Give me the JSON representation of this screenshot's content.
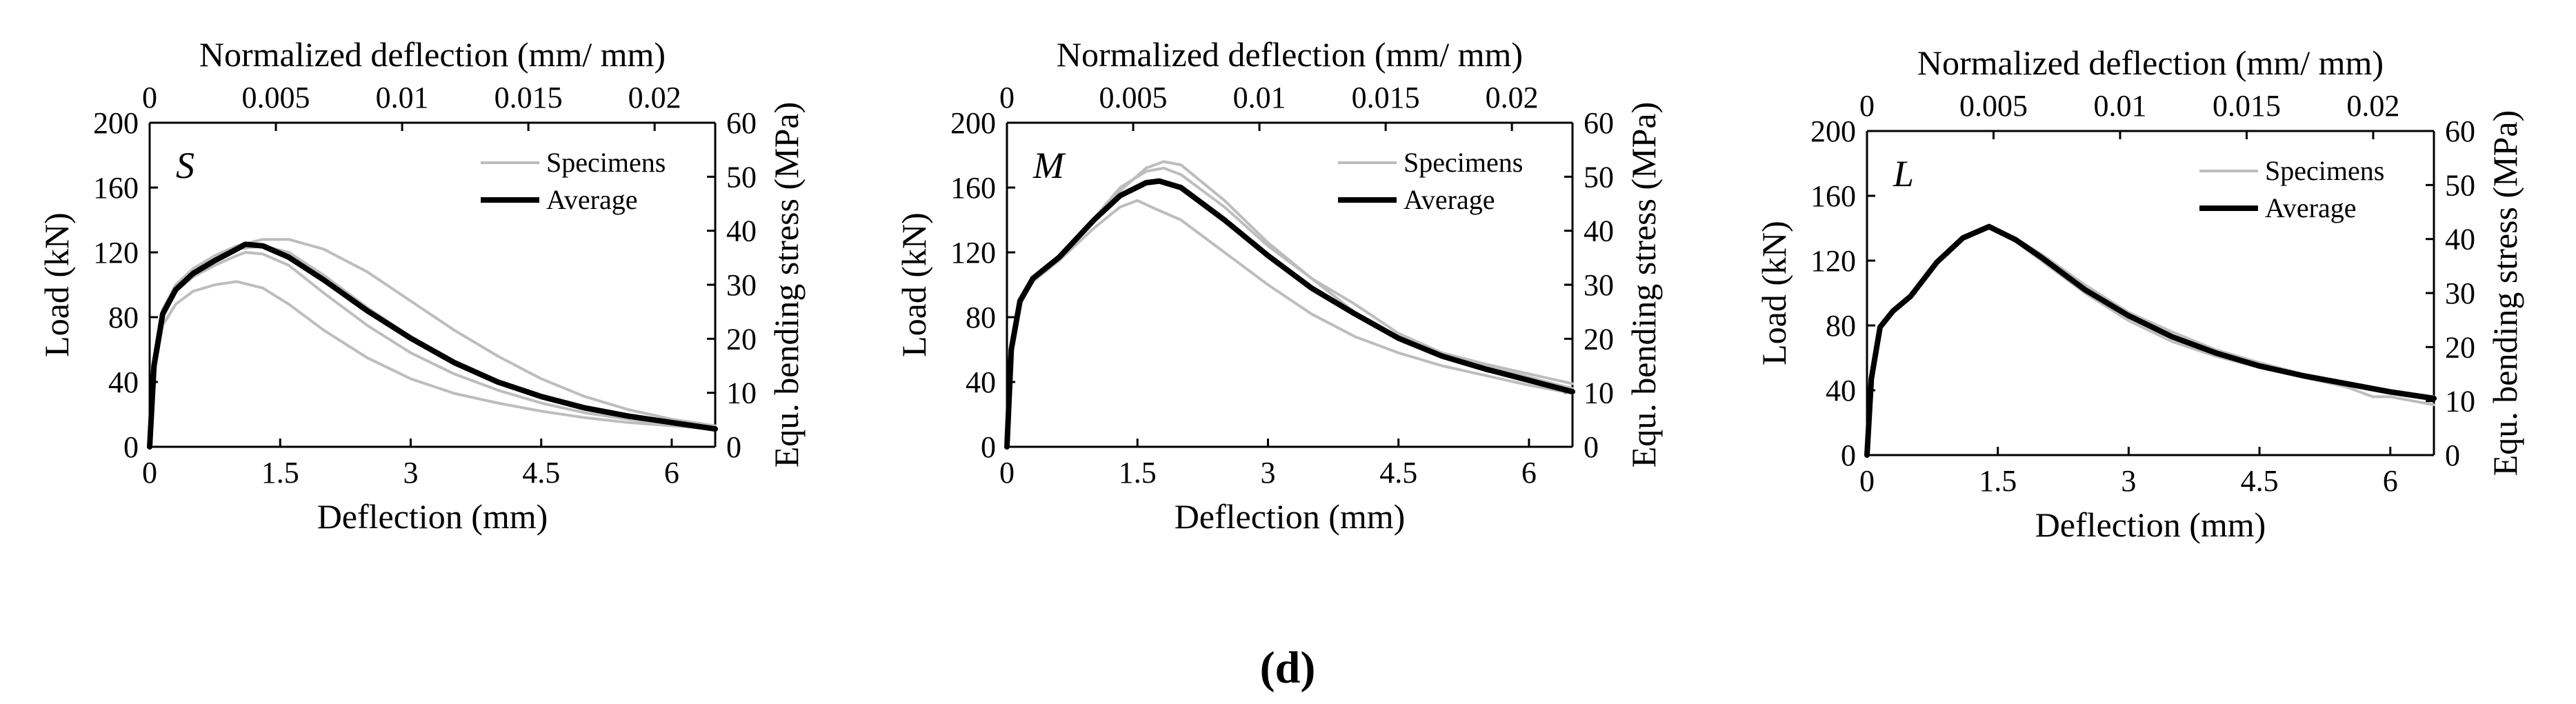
{
  "figure": {
    "caption_letter": "d"
  },
  "chart_data": [
    {
      "type": "line",
      "panel_label": "S",
      "xlabel": "Deflection (mm)",
      "ylabel": "Load (kN)",
      "x2label": "Normalized deflection (mm/ mm)",
      "y2label": "Equ. bending stress (MPa)",
      "xlim": [
        0,
        6.5
      ],
      "ylim": [
        0,
        200
      ],
      "x2lim": [
        0,
        0.0224
      ],
      "y2lim": [
        0,
        60
      ],
      "xticks": [
        0,
        1.5,
        3,
        4.5,
        6
      ],
      "yticks": [
        0,
        40,
        80,
        120,
        160,
        200
      ],
      "x2ticks": [
        0,
        0.005,
        0.01,
        0.015,
        0.02
      ],
      "y2ticks": [
        0,
        10,
        20,
        30,
        40,
        50,
        60
      ],
      "xtick_labels": [
        "0",
        "1.5",
        "3",
        "4.5",
        "6"
      ],
      "ytick_labels": [
        "0",
        "40",
        "80",
        "120",
        "160",
        "200"
      ],
      "x2tick_labels": [
        "0",
        "0.005",
        "0.01",
        "0.015",
        "0.02"
      ],
      "y2tick_labels": [
        "0",
        "10",
        "20",
        "30",
        "40",
        "50",
        "60"
      ],
      "legend": {
        "position": "top-right",
        "entries": [
          "Specimens",
          "Average"
        ]
      },
      "series": [
        {
          "name": "Specimens",
          "style": "specimen",
          "x": [
            0,
            0.05,
            0.15,
            0.3,
            0.5,
            0.75,
            1.0,
            1.1,
            1.3,
            1.6,
            2.0,
            2.5,
            3.0,
            3.5,
            4.0,
            4.5,
            5.0,
            5.5,
            6.0,
            6.5
          ],
          "y": [
            0,
            50,
            80,
            96,
            105,
            112,
            118,
            120,
            119,
            112,
            95,
            75,
            58,
            45,
            35,
            27,
            21,
            17,
            14,
            11
          ]
        },
        {
          "name": "Specimens",
          "style": "specimen",
          "x": [
            0,
            0.05,
            0.15,
            0.3,
            0.5,
            0.75,
            1.0,
            1.3,
            1.6,
            2.0,
            2.5,
            3.0,
            3.5,
            4.0,
            4.5,
            5.0,
            5.5,
            6.0,
            6.5
          ],
          "y": [
            0,
            45,
            75,
            88,
            96,
            100,
            102,
            98,
            88,
            72,
            55,
            42,
            33,
            27,
            22,
            18,
            15,
            13,
            11
          ]
        },
        {
          "name": "Specimens",
          "style": "specimen",
          "x": [
            0,
            0.05,
            0.15,
            0.3,
            0.5,
            0.75,
            1.0,
            1.3,
            1.6,
            2.0,
            2.5,
            3.0,
            3.5,
            4.0,
            4.5,
            5.0,
            5.5,
            6.0,
            6.5
          ],
          "y": [
            0,
            55,
            85,
            100,
            110,
            118,
            124,
            128,
            128,
            122,
            108,
            90,
            72,
            56,
            42,
            31,
            23,
            17,
            13
          ]
        },
        {
          "name": "Specimens",
          "style": "specimen",
          "x": [
            0,
            0.05,
            0.15,
            0.3,
            0.5,
            0.75,
            1.0,
            1.3,
            1.6,
            2.0,
            2.5,
            3.0,
            3.5,
            4.0,
            4.5,
            5.0,
            5.5,
            6.0,
            6.5
          ],
          "y": [
            0,
            52,
            82,
            98,
            108,
            116,
            122,
            124,
            120,
            106,
            86,
            68,
            53,
            41,
            32,
            25,
            19,
            15,
            12
          ]
        },
        {
          "name": "Average",
          "style": "average",
          "x": [
            0,
            0.05,
            0.15,
            0.3,
            0.5,
            0.75,
            1.0,
            1.1,
            1.3,
            1.6,
            2.0,
            2.5,
            3.0,
            3.5,
            4.0,
            4.5,
            5.0,
            5.5,
            6.0,
            6.5
          ],
          "y": [
            0,
            50,
            82,
            97,
            107,
            115,
            122,
            125,
            124,
            117,
            103,
            84,
            67,
            52,
            40,
            31,
            24,
            19,
            15,
            11
          ]
        }
      ]
    },
    {
      "type": "line",
      "panel_label": "M",
      "xlabel": "Deflection (mm)",
      "ylabel": "Load (kN)",
      "x2label": "Normalized deflection (mm/ mm)",
      "y2label": "Equ. bending stress (MPa)",
      "xlim": [
        0,
        6.5
      ],
      "ylim": [
        0,
        200
      ],
      "x2lim": [
        0,
        0.0224
      ],
      "y2lim": [
        0,
        60
      ],
      "xticks": [
        0,
        1.5,
        3,
        4.5,
        6
      ],
      "yticks": [
        0,
        40,
        80,
        120,
        160,
        200
      ],
      "x2ticks": [
        0,
        0.005,
        0.01,
        0.015,
        0.02
      ],
      "y2ticks": [
        0,
        10,
        20,
        30,
        40,
        50,
        60
      ],
      "xtick_labels": [
        "0",
        "1.5",
        "3",
        "4.5",
        "6"
      ],
      "ytick_labels": [
        "0",
        "40",
        "80",
        "120",
        "160",
        "200"
      ],
      "x2tick_labels": [
        "0",
        "0.005",
        "0.01",
        "0.015",
        "0.02"
      ],
      "y2tick_labels": [
        "0",
        "10",
        "20",
        "30",
        "40",
        "50",
        "60"
      ],
      "legend": {
        "position": "top-right",
        "entries": [
          "Specimens",
          "Average"
        ]
      },
      "series": [
        {
          "name": "Specimens",
          "style": "specimen",
          "x": [
            0,
            0.05,
            0.15,
            0.3,
            0.6,
            1.0,
            1.3,
            1.6,
            1.8,
            2.0,
            2.5,
            3.0,
            3.5,
            4.0,
            4.5,
            5.0,
            5.5,
            6.0,
            6.5
          ],
          "y": [
            0,
            60,
            90,
            105,
            118,
            140,
            158,
            172,
            176,
            174,
            152,
            126,
            104,
            83,
            68,
            58,
            51,
            45,
            39
          ]
        },
        {
          "name": "Specimens",
          "style": "specimen",
          "x": [
            0,
            0.05,
            0.15,
            0.3,
            0.6,
            1.0,
            1.3,
            1.5,
            1.7,
            2.0,
            2.5,
            3.0,
            3.5,
            4.0,
            4.5,
            5.0,
            5.5,
            6.0,
            6.5
          ],
          "y": [
            0,
            60,
            88,
            102,
            115,
            135,
            148,
            152,
            147,
            140,
            120,
            100,
            82,
            68,
            58,
            50,
            44,
            38,
            33
          ]
        },
        {
          "name": "Specimens",
          "style": "specimen",
          "x": [
            0,
            0.05,
            0.15,
            0.3,
            0.6,
            1.0,
            1.3,
            1.6,
            1.8,
            2.0,
            2.5,
            3.0,
            3.5,
            4.0,
            4.5,
            5.0,
            5.5,
            6.0,
            6.5
          ],
          "y": [
            0,
            60,
            89,
            104,
            117,
            141,
            160,
            170,
            172,
            168,
            148,
            124,
            104,
            88,
            70,
            58,
            50,
            43,
            36
          ]
        },
        {
          "name": "Average",
          "style": "average",
          "x": [
            0,
            0.05,
            0.15,
            0.3,
            0.6,
            1.0,
            1.3,
            1.6,
            1.75,
            2.0,
            2.5,
            3.0,
            3.5,
            4.0,
            4.5,
            5.0,
            5.5,
            6.0,
            6.5
          ],
          "y": [
            0,
            60,
            90,
            104,
            117,
            140,
            155,
            163,
            164,
            160,
            140,
            118,
            98,
            82,
            67,
            56,
            48,
            41,
            34
          ]
        }
      ]
    },
    {
      "type": "line",
      "panel_label": "L",
      "xlabel": "Deflection (mm)",
      "ylabel": "Load (kN)",
      "x2label": "Normalized deflection (mm/ mm)",
      "y2label": "Equ. bending stress (MPa)",
      "xlim": [
        0,
        6.5
      ],
      "ylim": [
        0,
        200
      ],
      "x2lim": [
        0,
        0.0224
      ],
      "y2lim": [
        0,
        60
      ],
      "xticks": [
        0,
        1.5,
        3,
        4.5,
        6
      ],
      "yticks": [
        0,
        40,
        80,
        120,
        160,
        200
      ],
      "x2ticks": [
        0,
        0.005,
        0.01,
        0.015,
        0.02
      ],
      "y2ticks": [
        0,
        10,
        20,
        30,
        40,
        50,
        60
      ],
      "xtick_labels": [
        "0",
        "1.5",
        "3",
        "4.5",
        "6"
      ],
      "ytick_labels": [
        "0",
        "40",
        "80",
        "120",
        "160",
        "200"
      ],
      "x2tick_labels": [
        "0",
        "0.005",
        "0.01",
        "0.015",
        "0.02"
      ],
      "y2tick_labels": [
        "0",
        "10",
        "20",
        "30",
        "40",
        "50",
        "60"
      ],
      "legend": {
        "position": "top-right",
        "entries": [
          "Specimens",
          "Average"
        ]
      },
      "series": [
        {
          "name": "Specimens",
          "style": "specimen",
          "x": [
            0,
            0.05,
            0.15,
            0.3,
            0.5,
            0.8,
            1.1,
            1.4,
            1.7,
            2.0,
            2.5,
            3.0,
            3.5,
            4.0,
            4.5,
            5.0,
            5.5,
            5.8,
            6.0,
            6.5
          ],
          "y": [
            0,
            45,
            78,
            88,
            98,
            118,
            134,
            140,
            132,
            120,
            100,
            83,
            70,
            61,
            54,
            48,
            42,
            36,
            36,
            31
          ]
        },
        {
          "name": "Specimens",
          "style": "specimen",
          "x": [
            0,
            0.05,
            0.15,
            0.3,
            0.5,
            0.8,
            1.1,
            1.4,
            1.7,
            2.0,
            2.5,
            3.0,
            3.5,
            4.0,
            4.5,
            5.0,
            5.5,
            6.0,
            6.5
          ],
          "y": [
            0,
            48,
            80,
            90,
            99,
            120,
            135,
            142,
            134,
            124,
            105,
            88,
            76,
            65,
            57,
            50,
            45,
            40,
            36
          ]
        },
        {
          "name": "Average",
          "style": "average",
          "x": [
            0,
            0.05,
            0.15,
            0.3,
            0.5,
            0.8,
            1.1,
            1.4,
            1.7,
            2.0,
            2.5,
            3.0,
            3.5,
            4.0,
            4.5,
            5.0,
            5.5,
            6.0,
            6.5
          ],
          "y": [
            0,
            47,
            79,
            89,
            98,
            119,
            134,
            141,
            133,
            122,
            102,
            86,
            73,
            63,
            55,
            49,
            44,
            39,
            35
          ]
        }
      ]
    }
  ]
}
